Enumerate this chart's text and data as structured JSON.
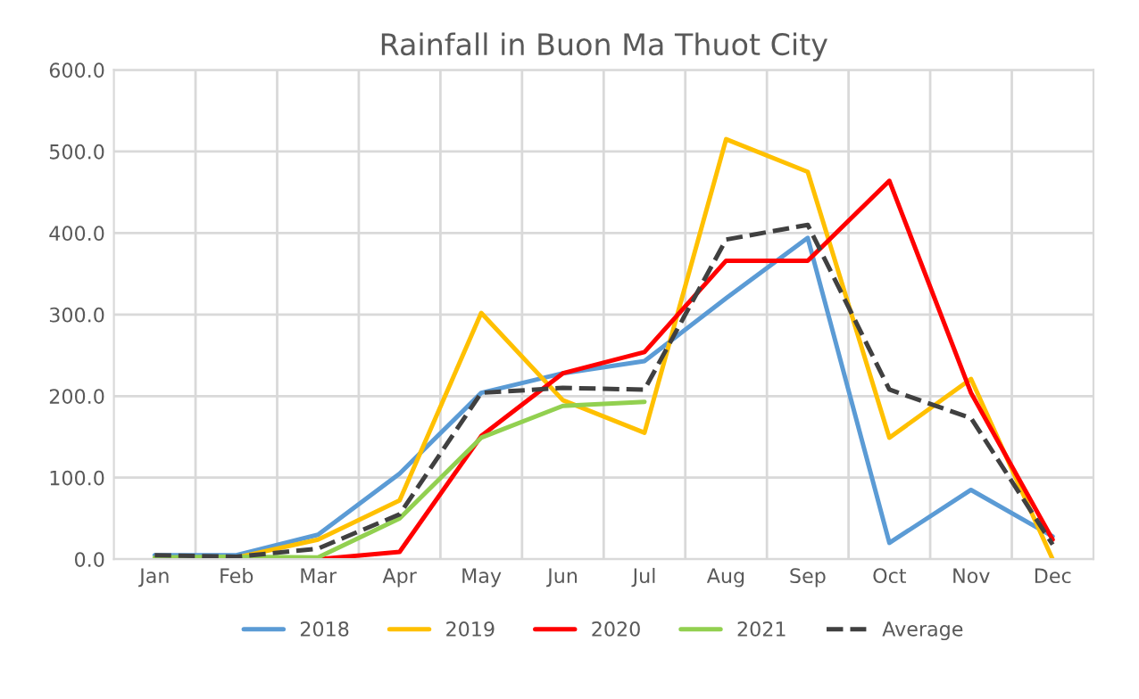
{
  "chart_data": {
    "type": "line",
    "title": "Rainfall in Buon Ma Thuot City",
    "categories": [
      "Jan",
      "Feb",
      "Mar",
      "Apr",
      "May",
      "Jun",
      "Jul",
      "Aug",
      "Sep",
      "Oct",
      "Nov",
      "Dec"
    ],
    "series": [
      {
        "name": "2018",
        "color": "#5b9bd5",
        "values": [
          5,
          5,
          30,
          105,
          204,
          228,
          243,
          320,
          394,
          20,
          85,
          28
        ]
      },
      {
        "name": "2019",
        "color": "#ffc000",
        "values": [
          0,
          2,
          24,
          72,
          302,
          195,
          155,
          515,
          475,
          149,
          221,
          0
        ]
      },
      {
        "name": "2020",
        "color": "#ff0000",
        "values": [
          0,
          0,
          0,
          9,
          151,
          228,
          254,
          366,
          366,
          464,
          204,
          24
        ]
      },
      {
        "name": "2021",
        "color": "#92d050",
        "values": [
          2,
          3,
          2,
          50,
          149,
          188,
          193,
          null,
          null,
          null,
          null,
          null
        ]
      },
      {
        "name": "Average",
        "color": "#404040",
        "line_style": "dashed",
        "values": [
          5,
          3,
          13,
          55,
          204,
          210,
          208,
          392,
          410,
          208,
          173,
          18
        ]
      }
    ],
    "ylim": [
      0,
      600
    ],
    "yticks": [
      {
        "value": 0,
        "label": "0.0"
      },
      {
        "value": 100,
        "label": "100.0"
      },
      {
        "value": 200,
        "label": "200.0"
      },
      {
        "value": 300,
        "label": "300.0"
      },
      {
        "value": 400,
        "label": "400.0"
      },
      {
        "value": 500,
        "label": "500.0"
      },
      {
        "value": 600,
        "label": "600.0"
      }
    ],
    "grid": true,
    "legend": "bottom",
    "marker": "none",
    "line_style": "solid"
  }
}
